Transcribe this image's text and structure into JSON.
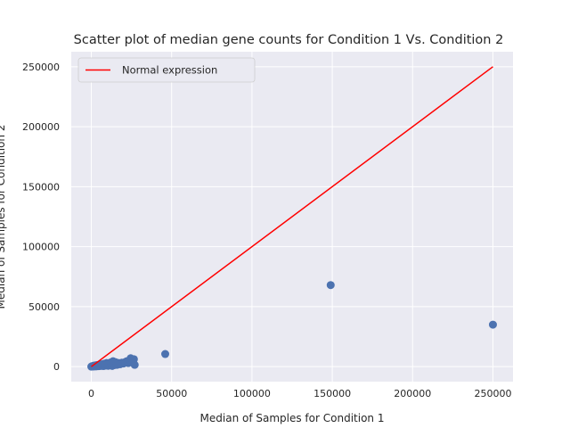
{
  "chart_data": {
    "type": "scatter",
    "title": "Scatter plot of median gene counts for Condition 1 Vs. Condition 2",
    "xlabel": "Median of Samples for Condition 1",
    "ylabel": "Median of Samples for Condition 2",
    "xlim": [
      -12500,
      262500
    ],
    "ylim": [
      -12500,
      262500
    ],
    "xticks": [
      0,
      50000,
      100000,
      150000,
      200000,
      250000
    ],
    "yticks": [
      0,
      50000,
      100000,
      150000,
      200000,
      250000
    ],
    "grid": true,
    "legend": {
      "placement": "top-left",
      "entries": [
        "Normal expression"
      ]
    },
    "reference_line": {
      "name": "Normal expression",
      "x": [
        0,
        250000
      ],
      "y": [
        0,
        250000
      ],
      "color": "#ff0000"
    },
    "series": [
      {
        "color": "#4c72b0",
        "points": [
          [
            0,
            0
          ],
          [
            300,
            200
          ],
          [
            600,
            400
          ],
          [
            900,
            100
          ],
          [
            1200,
            600
          ],
          [
            1500,
            300
          ],
          [
            1800,
            900
          ],
          [
            2100,
            500
          ],
          [
            2400,
            200
          ],
          [
            2700,
            1100
          ],
          [
            3000,
            700
          ],
          [
            3400,
            300
          ],
          [
            3800,
            1300
          ],
          [
            4200,
            800
          ],
          [
            4600,
            400
          ],
          [
            5000,
            1500
          ],
          [
            5500,
            900
          ],
          [
            6000,
            600
          ],
          [
            6500,
            2000
          ],
          [
            7000,
            1200
          ],
          [
            7500,
            500
          ],
          [
            8000,
            2500
          ],
          [
            8500,
            1600
          ],
          [
            9000,
            900
          ],
          [
            9500,
            3000
          ],
          [
            10000,
            1800
          ],
          [
            10500,
            700
          ],
          [
            11000,
            2200
          ],
          [
            11500,
            1200
          ],
          [
            12000,
            3500
          ],
          [
            12500,
            2000
          ],
          [
            13000,
            600
          ],
          [
            13500,
            4500
          ],
          [
            14000,
            2600
          ],
          [
            14500,
            1300
          ],
          [
            15000,
            3800
          ],
          [
            15500,
            2200
          ],
          [
            16000,
            1500
          ],
          [
            17000,
            3000
          ],
          [
            18000,
            2000
          ],
          [
            19000,
            3300
          ],
          [
            20000,
            2600
          ],
          [
            21000,
            3800
          ],
          [
            22000,
            4500
          ],
          [
            23000,
            3000
          ],
          [
            24000,
            5500
          ],
          [
            24500,
            7000
          ],
          [
            25000,
            4000
          ],
          [
            25500,
            5800
          ],
          [
            26000,
            3600
          ],
          [
            26500,
            6200
          ],
          [
            27000,
            1500
          ],
          [
            46000,
            10500
          ],
          [
            149000,
            68000
          ],
          [
            250000,
            35000
          ]
        ]
      }
    ]
  }
}
